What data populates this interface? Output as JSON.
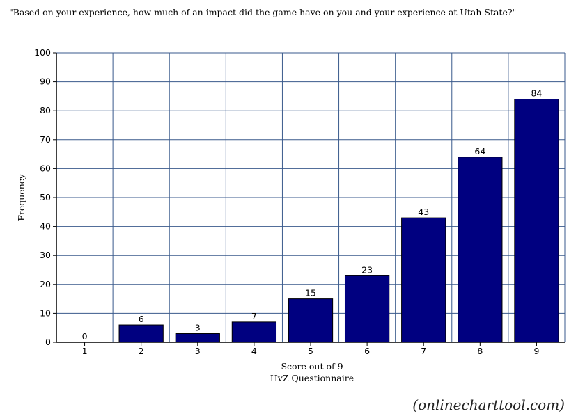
{
  "chart_data": {
    "type": "bar",
    "title": "\"Based on your experience, how much of an impact did the game have on you and your experience at Utah State?\"",
    "ylabel": "Frequency",
    "xlabel_lines": [
      "Score out of 9",
      "HvZ Questionnaire"
    ],
    "categories": [
      "1",
      "2",
      "3",
      "4",
      "5",
      "6",
      "7",
      "8",
      "9"
    ],
    "values": [
      0,
      6,
      3,
      7,
      15,
      23,
      43,
      64,
      84
    ],
    "ylim": [
      0,
      100
    ],
    "yticks": [
      0,
      10,
      20,
      30,
      40,
      50,
      60,
      70,
      80,
      90,
      100
    ],
    "grid": true,
    "bar_color": "#000080",
    "grid_color": "#3a5a8c"
  },
  "watermark": "(onlinecharttool.com)"
}
